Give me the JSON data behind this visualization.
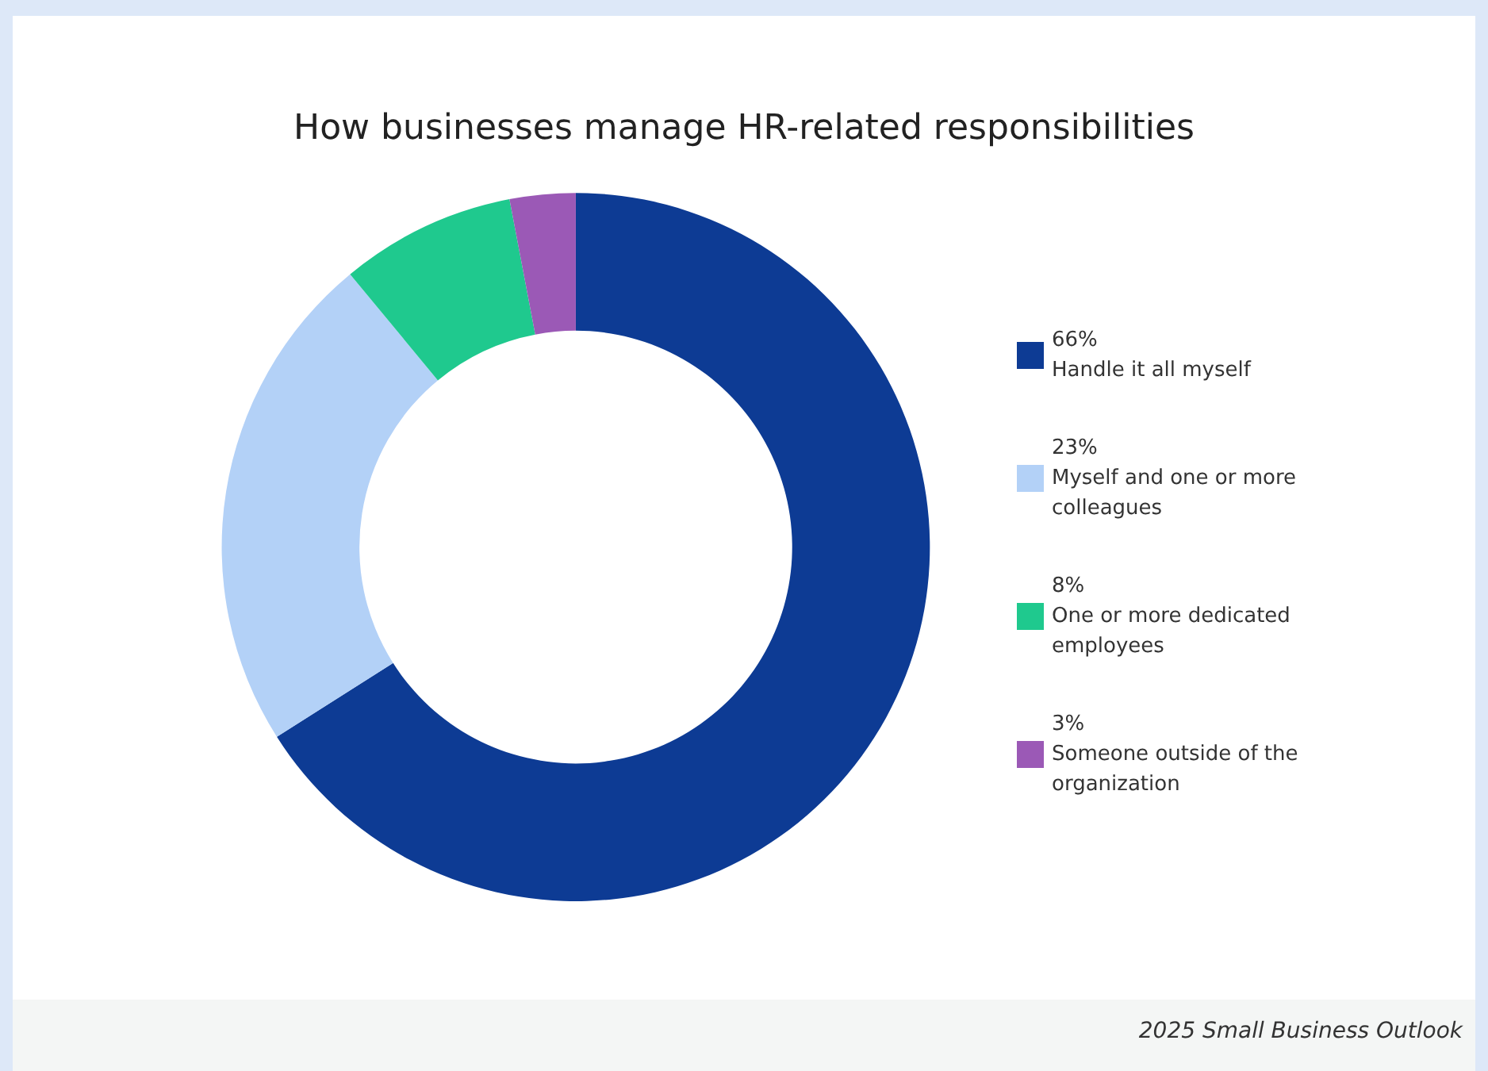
{
  "chart_data": {
    "type": "donut",
    "title": "How businesses manage HR-related responsibilities",
    "categories": [
      "Handle it all myself",
      "Myself and one or more colleagues",
      "One or more dedicated employees",
      "Someone outside of the organization"
    ],
    "values": [
      66,
      23,
      8,
      3
    ],
    "value_labels": [
      "66%",
      "23%",
      "8%",
      "3%"
    ],
    "colors": [
      "#0d3b94",
      "#b3d1f7",
      "#1fc98e",
      "#9b59b6"
    ],
    "legend": "right",
    "annotations": [
      "2025 Small Business Outlook"
    ]
  }
}
